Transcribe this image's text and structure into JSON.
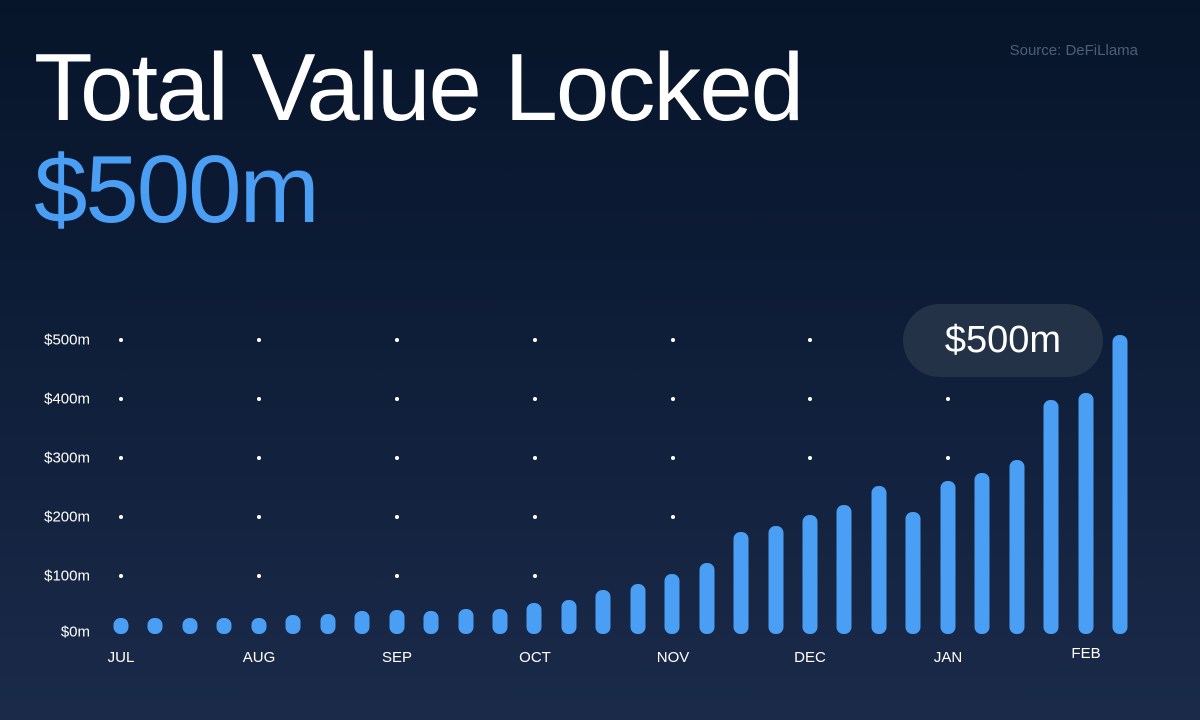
{
  "header": {
    "title": "Total Value Locked",
    "value": "$500m",
    "source": "Source: DeFiLlama"
  },
  "callout": {
    "label": "$500m"
  },
  "colors": {
    "accent": "#4a9ff5",
    "background_top": "#07152a",
    "background_bottom": "#1a2a49",
    "callout_bg": "#233247",
    "source_text": "#4c5e76"
  },
  "chart_data": {
    "type": "bar",
    "title": "Total Value Locked",
    "subtitle": "$500m",
    "source": "Source: DeFiLlama",
    "xlabel": "",
    "ylabel": "",
    "ylim": [
      0,
      500
    ],
    "yticks": [
      "$0m",
      "$100m",
      "$200m",
      "$300m",
      "$400m",
      "$500m"
    ],
    "xticks": [
      "JUL",
      "AUG",
      "SEP",
      "OCT",
      "NOV",
      "DEC",
      "JAN",
      "FEB"
    ],
    "grid": "dotted",
    "legend": "none",
    "annotation": "$500m",
    "categories": [
      "JUL-1",
      "JUL-2",
      "JUL-3",
      "JUL-4",
      "AUG-1",
      "AUG-2",
      "AUG-3",
      "AUG-4",
      "SEP-1",
      "SEP-2",
      "SEP-3",
      "SEP-4",
      "OCT-1",
      "OCT-2",
      "OCT-3",
      "OCT-4",
      "NOV-1",
      "NOV-2",
      "NOV-3",
      "NOV-4",
      "DEC-1",
      "DEC-2",
      "DEC-3",
      "DEC-4",
      "JAN-1",
      "JAN-2",
      "JAN-3",
      "JAN-4",
      "FEB-1",
      "FEB-2"
    ],
    "values": [
      25,
      25,
      28,
      28,
      28,
      32,
      34,
      39,
      41,
      39,
      42,
      42,
      53,
      58,
      75,
      85,
      102,
      121,
      173,
      184,
      202,
      219,
      252,
      207,
      260,
      274,
      296,
      398,
      410,
      508
    ]
  }
}
